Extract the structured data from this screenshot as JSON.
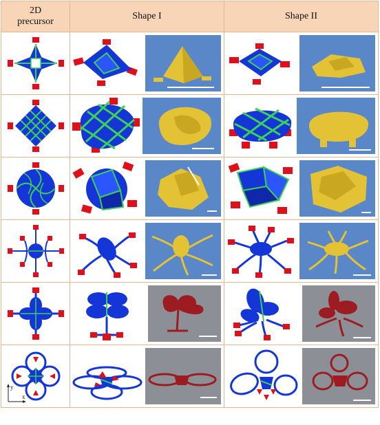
{
  "header": {
    "col1_line1": "2D",
    "col1_line2": "precursor",
    "col2": "Shape I",
    "col3": "Shape II"
  },
  "axes": {
    "y": "y",
    "x": "x"
  },
  "colors": {
    "header_bg": "#f8d5b6",
    "grid_line": "#e2b690",
    "structure_blue": "#1436d6",
    "hinge_green": "#3ccf5a",
    "pad_red": "#e0101a",
    "sem_blue": "#5a87c8",
    "sem_gold": "#e3c335",
    "photo_gray": "#8d8f97",
    "photo_red": "#9c1c22"
  },
  "rows": [
    {
      "id": "row-1",
      "precursor": "cross-pyramid",
      "shape1_sem": "sem-blue",
      "shape2_sem": "sem-blue"
    },
    {
      "id": "row-2",
      "precursor": "diamond-grid",
      "shape1_sem": "sem-blue",
      "shape2_sem": "sem-blue"
    },
    {
      "id": "row-3",
      "precursor": "pinwheel-disk",
      "shape1_sem": "sem-blue",
      "shape2_sem": "sem-blue"
    },
    {
      "id": "row-4",
      "precursor": "spider-disk",
      "shape1_sem": "sem-blue",
      "shape2_sem": "sem-blue"
    },
    {
      "id": "row-5",
      "precursor": "petal-flower",
      "shape1_sem": "photo-gray",
      "shape2_sem": "photo-gray"
    },
    {
      "id": "row-6",
      "precursor": "ring-flower",
      "shape1_sem": "photo-gray",
      "shape2_sem": "photo-gray"
    }
  ]
}
